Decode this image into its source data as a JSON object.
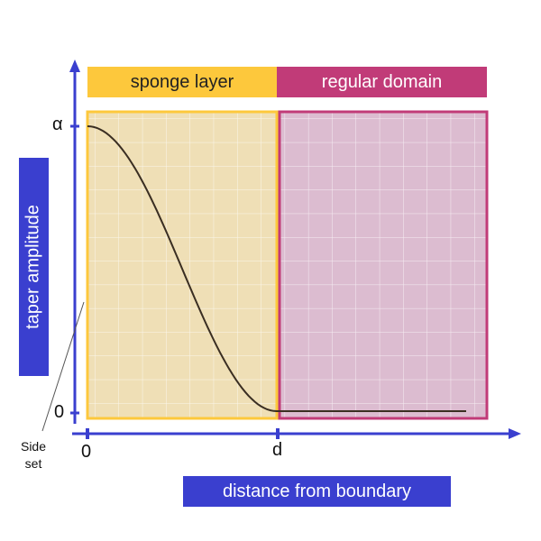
{
  "y_axis_label": "taper amplitude",
  "x_axis_label": "distance from boundary",
  "regions": {
    "sponge": {
      "label": "sponge layer",
      "color": "#fdc83c",
      "fill": "#efdfb6"
    },
    "regular": {
      "label": "regular domain",
      "color": "#c13b78",
      "fill": "#dcbcd0"
    }
  },
  "y_ticks": {
    "top": "α",
    "bottom": "0"
  },
  "x_ticks": {
    "left": "0",
    "right": "d"
  },
  "side_note": {
    "line1": "Side",
    "line2": "set"
  },
  "colors": {
    "axis": "#3a3fcf",
    "curve": "#3a2e22"
  },
  "chart_data": {
    "type": "line",
    "series": [
      {
        "description": "cosine taper falling from alpha at 0 to 0 at d, then flat",
        "x": [
          0,
          0.1,
          0.2,
          0.3,
          0.4,
          0.5,
          0.6,
          0.7,
          0.8,
          0.9,
          1.0,
          1.5,
          2.0
        ],
        "y_fraction_of_alpha": [
          1.0,
          0.976,
          0.905,
          0.794,
          0.655,
          0.5,
          0.345,
          0.206,
          0.095,
          0.024,
          0.0,
          0.0,
          0.0
        ]
      }
    ],
    "x_unit": "d"
  }
}
